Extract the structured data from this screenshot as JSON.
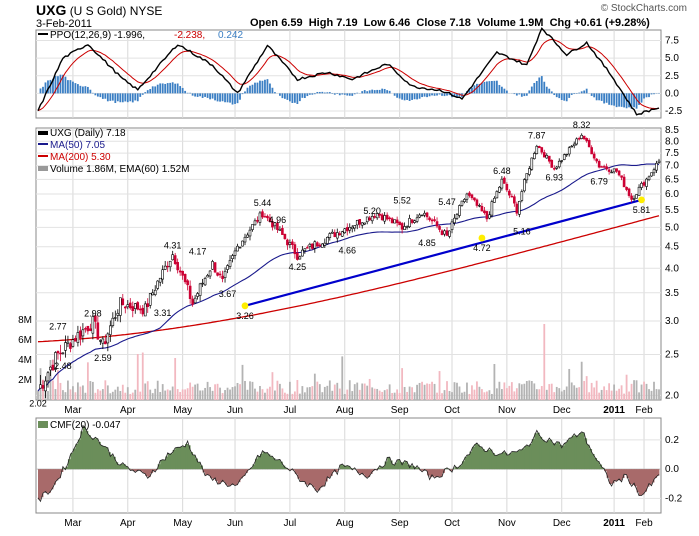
{
  "header": {
    "symbol": "UXG",
    "name": "(U S Gold)",
    "exchange": "NYSE",
    "date": "3-Feb-2011",
    "open_label": "Open",
    "open": "6.59",
    "high_label": "High",
    "high": "7.19",
    "low_label": "Low",
    "low": "6.46",
    "close_label": "Close",
    "close": "7.18",
    "volume_label": "Volume",
    "volume": "1.9M",
    "chg_label": "Chg",
    "chg": "+0.61 (+9.28%)",
    "watermark": "© StockCharts.com"
  },
  "ppo_panel": {
    "legend_prefix": "PPO(12,26,9)",
    "ppo_value": "-1.996",
    "signal_value": "-2.238",
    "hist_value": "0.242",
    "y_ticks": [
      "7.5",
      "5.0",
      "2.5",
      "0.0",
      "-2.5"
    ]
  },
  "price_panel": {
    "legend_title": "UXG (Daily) 7.18",
    "ma50_label": "MA(50) 7.05",
    "ma200_label": "MA(200) 5.30",
    "volume_label": "Volume 1.86M, EMA(60) 1.52M",
    "y_ticks": [
      "8.5",
      "8.0",
      "7.5",
      "7.0",
      "6.5",
      "6.0",
      "5.5",
      "5.0",
      "4.5",
      "4.0",
      "3.5",
      "3.0",
      "2.5",
      "2.0"
    ],
    "vol_ticks": [
      "8M",
      "6M",
      "4M",
      "2M"
    ],
    "annotations": [
      "2.02",
      "2.48",
      "2.77",
      "2.98",
      "2.59",
      "3.31",
      "4.31",
      "3.26",
      "4.17",
      "3.67",
      "5.44",
      "4.96",
      "4.25",
      "4.66",
      "5.20",
      "5.52",
      "4.85",
      "5.47",
      "4.72",
      "6.48",
      "5.16",
      "7.87",
      "6.93",
      "8.32",
      "6.79",
      "5.81"
    ]
  },
  "cmf_panel": {
    "legend": "CMF(20) -0.047",
    "y_ticks": [
      "0.2",
      "0.0",
      "-0.2"
    ]
  },
  "x_axis": {
    "labels": [
      "Mar",
      "Apr",
      "May",
      "Jun",
      "Jul",
      "Aug",
      "Sep",
      "Oct",
      "Nov",
      "Dec",
      "2011",
      "Feb"
    ]
  },
  "colors": {
    "price_line": "#000000",
    "ma50": "#1a1a8c",
    "ma200": "#cc0000",
    "trendline": "#0000cc",
    "up_candle": "#000000",
    "down_candle": "#cc0033",
    "cmf_positive": "#6b8e5a",
    "cmf_negative": "#a86a6a",
    "ppo_hist": "#3b7fc4",
    "ppo_signal": "#cc0000",
    "marker": "#ffee00"
  },
  "chart_data": [
    {
      "type": "line",
      "title": "PPO(12,26,9)",
      "x": [
        "Feb",
        "Mar",
        "Apr",
        "May",
        "Jun",
        "Jul",
        "Aug",
        "Sep",
        "Oct",
        "Nov",
        "Dec",
        "2011",
        "Feb"
      ],
      "series": [
        {
          "name": "PPO(12,26,9)",
          "values": [
            -2.0,
            6.5,
            2.0,
            7.0,
            0.5,
            6.5,
            2.0,
            3.5,
            0.5,
            6.0,
            9.0,
            3.0,
            -2.0
          ]
        },
        {
          "name": "Signal",
          "values": [
            -1.5,
            5.5,
            2.5,
            6.0,
            1.5,
            5.5,
            2.5,
            3.0,
            1.0,
            5.0,
            8.0,
            3.5,
            -2.2
          ]
        }
      ],
      "ylim": [
        -3.5,
        9.0
      ]
    },
    {
      "type": "line",
      "title": "UXG (Daily) 7.18",
      "x": [
        "Feb",
        "Mar",
        "Apr",
        "May",
        "Jun",
        "Jul",
        "Aug",
        "Sep",
        "Oct",
        "Nov",
        "Dec",
        "2011",
        "Feb"
      ],
      "series": [
        {
          "name": "UXG (Daily) 7.18",
          "values": [
            2.02,
            2.8,
            2.7,
            4.2,
            3.7,
            5.1,
            4.5,
            5.3,
            4.9,
            6.2,
            7.9,
            6.9,
            7.18
          ]
        },
        {
          "name": "MA(50) 7.05",
          "values": [
            2.3,
            2.55,
            2.75,
            3.4,
            3.8,
            4.45,
            4.75,
            4.95,
            5.05,
            5.4,
            6.4,
            6.95,
            7.05
          ]
        },
        {
          "name": "MA(200) 5.30",
          "values": [
            2.7,
            2.72,
            2.78,
            2.9,
            3.1,
            3.35,
            3.6,
            3.85,
            4.1,
            4.4,
            4.8,
            5.15,
            5.3
          ]
        }
      ],
      "ylim": [
        2.0,
        8.5
      ]
    },
    {
      "type": "area",
      "title": "CMF(20) -0.047",
      "x": [
        "Feb",
        "Mar",
        "Apr",
        "May",
        "Jun",
        "Jul",
        "Aug",
        "Sep",
        "Oct",
        "Nov",
        "Dec",
        "2011",
        "Feb"
      ],
      "series": [
        {
          "name": "CMF(20) -0.047",
          "values": [
            -0.2,
            0.25,
            0.0,
            0.18,
            -0.1,
            0.1,
            -0.05,
            0.05,
            -0.05,
            0.12,
            0.2,
            -0.1,
            -0.047
          ]
        }
      ],
      "ylim": [
        -0.3,
        0.35
      ]
    }
  ]
}
